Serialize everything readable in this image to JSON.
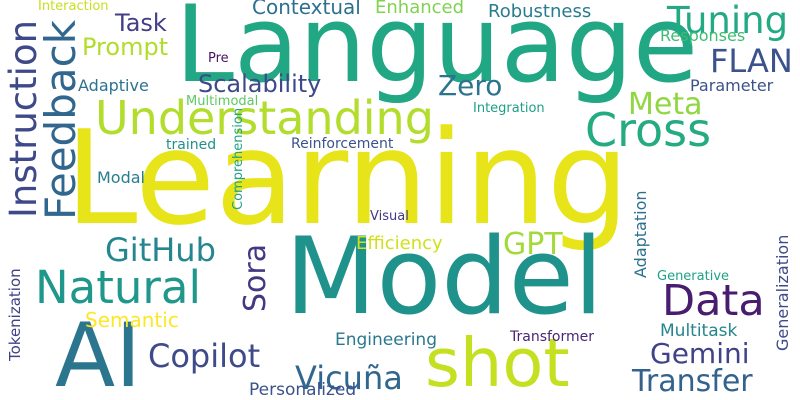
{
  "words": [
    {
      "text": "Learning",
      "color": "#e7e419"
    },
    {
      "text": "Language",
      "color": "#22a785"
    },
    {
      "text": "Model",
      "color": "#1f928c"
    },
    {
      "text": "AI",
      "color": "#2b758e"
    },
    {
      "text": "shot",
      "color": "#c5e021"
    },
    {
      "text": "Understanding",
      "color": "#b2dd2d"
    },
    {
      "text": "Cross",
      "color": "#25ab82"
    },
    {
      "text": "Data",
      "color": "#481d6f"
    },
    {
      "text": "Natural",
      "color": "#1f988b"
    },
    {
      "text": "Tuning",
      "color": "#23a983"
    },
    {
      "text": "Feedback",
      "color": "#31678e"
    },
    {
      "text": "Instruction",
      "color": "#3e4989"
    },
    {
      "text": "Meta",
      "color": "#90d743"
    },
    {
      "text": "FLAN",
      "color": "#3b528b"
    },
    {
      "text": "GitHub",
      "color": "#24868e"
    },
    {
      "text": "Copilot",
      "color": "#3e4a89"
    },
    {
      "text": "Vicuña",
      "color": "#31678e"
    },
    {
      "text": "Gemini",
      "color": "#404387"
    },
    {
      "text": "Transfer",
      "color": "#33628d"
    },
    {
      "text": "Zero",
      "color": "#2b748e"
    },
    {
      "text": "GPT",
      "color": "#a2da37"
    },
    {
      "text": "Sora",
      "color": "#453882"
    },
    {
      "text": "Scalability",
      "color": "#3e4989"
    },
    {
      "text": "Prompt",
      "color": "#b2dd2d"
    },
    {
      "text": "Task",
      "color": "#433e85"
    },
    {
      "text": "Contextual",
      "color": "#2d708e"
    },
    {
      "text": "Enhanced",
      "color": "#7fd34e"
    },
    {
      "text": "Robustness",
      "color": "#287c8e"
    },
    {
      "text": "Responses",
      "color": "#3dbc74"
    },
    {
      "text": "Parameter",
      "color": "#3b528b"
    },
    {
      "text": "Adaptive",
      "color": "#2c738e"
    },
    {
      "text": "Multimodal",
      "color": "#5ec962"
    },
    {
      "text": "Integration",
      "color": "#1f9e89"
    },
    {
      "text": "Semantic",
      "color": "#fde725"
    },
    {
      "text": "Efficiency",
      "color": "#d0e11c"
    },
    {
      "text": "Engineering",
      "color": "#2a788e"
    },
    {
      "text": "Personalized",
      "color": "#3b528b"
    },
    {
      "text": "Multitask",
      "color": "#25858e"
    },
    {
      "text": "Transformer",
      "color": "#482576"
    },
    {
      "text": "Generative",
      "color": "#1fa187"
    },
    {
      "text": "Generalization",
      "color": "#3e4a89"
    },
    {
      "text": "Adaptation",
      "color": "#2d708e"
    },
    {
      "text": "Tokenization",
      "color": "#424086"
    },
    {
      "text": "Modal",
      "color": "#277f8e"
    },
    {
      "text": "trained",
      "color": "#21918c"
    },
    {
      "text": "Reinforcement",
      "color": "#3b528b"
    },
    {
      "text": "Comprehension",
      "color": "#20a386"
    },
    {
      "text": "Visual",
      "color": "#453882"
    },
    {
      "text": "Pre",
      "color": "#471365"
    },
    {
      "text": "Interaction",
      "color": "#c8e020"
    }
  ]
}
